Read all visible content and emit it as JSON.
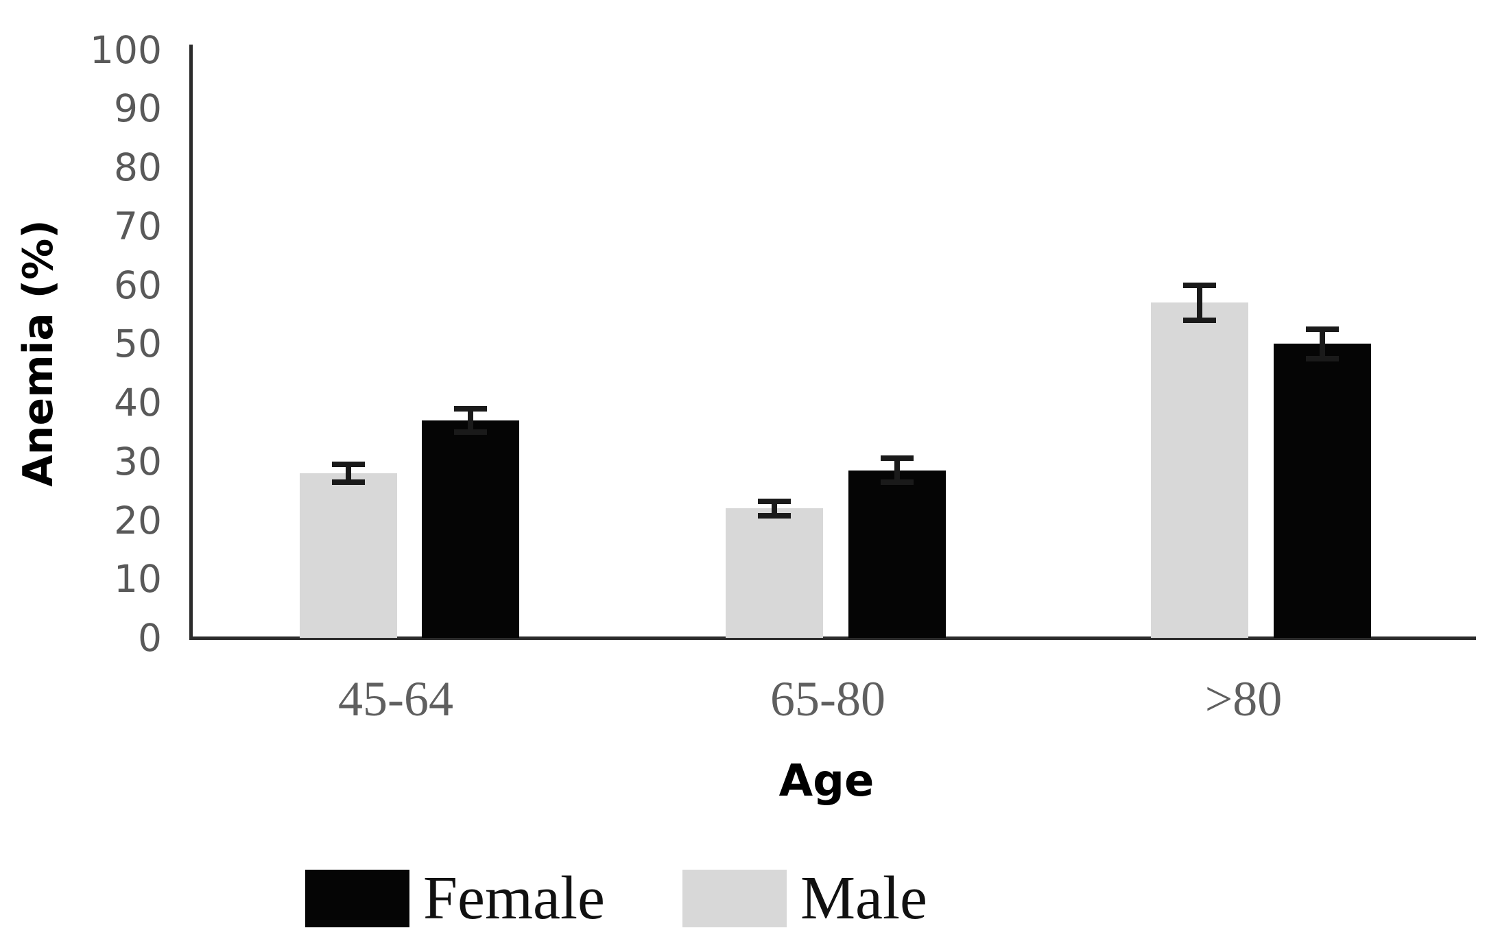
{
  "chart_data": {
    "type": "bar",
    "title": "",
    "xlabel": "Age",
    "ylabel": "Anemia (%)",
    "categories": [
      "45-64",
      "65-80",
      ">80"
    ],
    "series": [
      {
        "name": "Male",
        "color": "#d8d8d8",
        "values": [
          28,
          22,
          57
        ],
        "errors": [
          1.5,
          1.2,
          3.0
        ]
      },
      {
        "name": "Female",
        "color": "#050505",
        "values": [
          37,
          28.5,
          50
        ],
        "errors": [
          2.0,
          2.0,
          2.5
        ]
      }
    ],
    "ylim": [
      0,
      100
    ],
    "yticks": [
      0,
      10,
      20,
      30,
      40,
      50,
      60,
      70,
      80,
      90,
      100
    ],
    "grid": false,
    "error_bars": true,
    "legend_position": "bottom"
  },
  "legend": {
    "items": [
      {
        "label": "Female",
        "color": "#050505"
      },
      {
        "label": "Male",
        "color": "#d8d8d8"
      }
    ]
  },
  "colors": {
    "background": "#ffffff",
    "axis": "#2b2b2b",
    "error_bar": "#1a1a1a",
    "y_tick_text": "#595959",
    "x_tick_text": "#5f5f5f",
    "label_text": "#000000"
  }
}
